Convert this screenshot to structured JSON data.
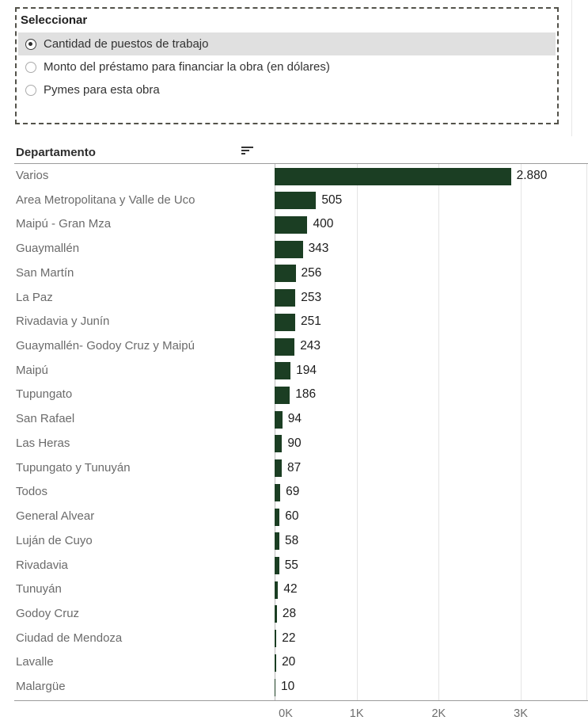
{
  "filter": {
    "title": "Seleccionar",
    "options": [
      {
        "label": "Cantidad de puestos de trabajo",
        "selected": true
      },
      {
        "label": "Monto del préstamo para financiar la obra (en dólares)",
        "selected": false
      },
      {
        "label": "Pymes para esta obra",
        "selected": false
      }
    ]
  },
  "chart_data": {
    "type": "bar",
    "orientation": "horizontal",
    "column_header": "Departamento",
    "sort_icon": "sort-descending-icon",
    "categories": [
      "Varios",
      "Area Metropolitana y Valle de Uco",
      "Maipú - Gran Mza",
      "Guaymallén",
      "San Martín",
      "La Paz",
      "Rivadavia y Junín",
      "Guaymallén- Godoy Cruz y Maipú",
      "Maipú",
      "Tupungato",
      "San Rafael",
      "Las Heras",
      "Tupungato y Tunuyán",
      "Todos",
      "General Alvear",
      "Luján de Cuyo",
      "Rivadavia",
      "Tunuyán",
      "Godoy Cruz",
      "Ciudad de Mendoza",
      "Lavalle",
      "Malargüe"
    ],
    "values": [
      2880,
      505,
      400,
      343,
      256,
      253,
      251,
      243,
      194,
      186,
      94,
      90,
      87,
      69,
      60,
      58,
      55,
      42,
      28,
      22,
      20,
      10
    ],
    "value_labels": [
      "2.880",
      "505",
      "400",
      "343",
      "256",
      "253",
      "251",
      "243",
      "194",
      "186",
      "94",
      "90",
      "87",
      "69",
      "60",
      "58",
      "55",
      "42",
      "28",
      "22",
      "20",
      "10"
    ],
    "x_ticks": [
      "0K",
      "1K",
      "2K",
      "3K"
    ],
    "x_tick_values": [
      0,
      1000,
      2000,
      3000
    ],
    "xlim": [
      0,
      3800
    ],
    "bar_color": "#1b3e23",
    "gridlines": true,
    "legend": "none",
    "title": "",
    "xlabel": "",
    "ylabel": "Departamento"
  }
}
